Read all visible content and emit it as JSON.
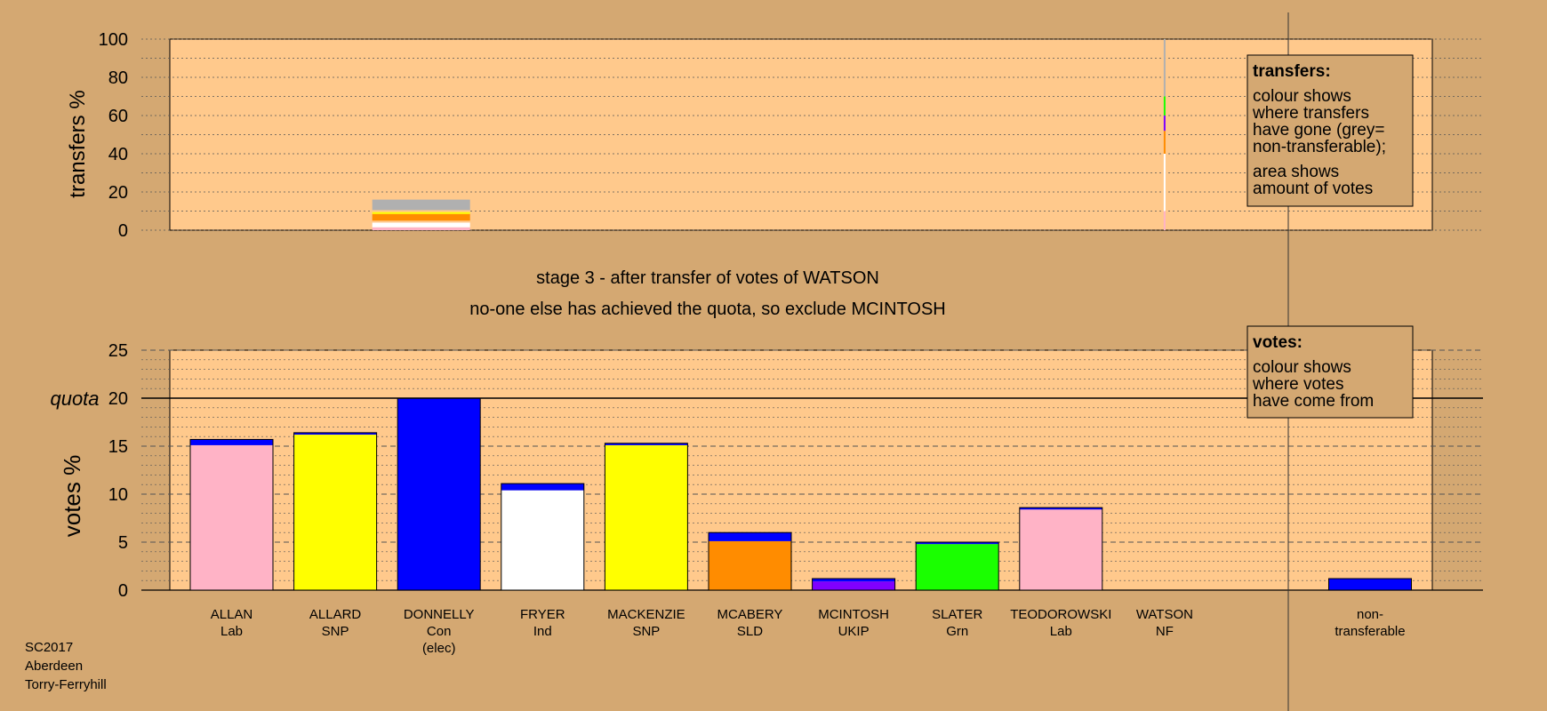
{
  "header": {
    "stage_title": "stage 3 - after transfer of votes of WATSON",
    "stage_note": "no-one else has achieved the quota, so exclude MCINTOSH"
  },
  "footer": {
    "election": "SC2017",
    "council": "Aberdeen",
    "ward": "Torry-Ferryhill"
  },
  "legend_transfers": {
    "title": "transfers:",
    "line1": "colour shows",
    "line2": "where transfers",
    "line3": "have gone (grey=",
    "line4": "non-transferable);",
    "line5": "area shows",
    "line6": "amount of votes"
  },
  "legend_votes": {
    "title": "votes:",
    "line1": "colour shows",
    "line2": "where votes",
    "line3": "have come from"
  },
  "colors": {
    "background": "#d4a872",
    "plot_bg": "#ffc98c",
    "Lab": "#ffb3c6",
    "SNP": "#ffff00",
    "Con": "#0000ff",
    "Ind": "#ffffff",
    "SLD": "#ff8c00",
    "UKIP": "#8000ff",
    "Grn": "#1aff00",
    "NF": "#b0b0b0",
    "non_transferable": "#b0b0b0"
  },
  "chart_data": [
    {
      "type": "bar",
      "stacked": true,
      "name": "transfers",
      "ylabel": "transfers %",
      "ylim": [
        0,
        100
      ],
      "yticks": [
        0,
        20,
        40,
        60,
        80,
        100
      ],
      "categories": [
        "DONNELLY",
        "WATSON"
      ],
      "bars": [
        {
          "candidate": "DONNELLY",
          "segments": [
            {
              "color": "#ffb3c6",
              "value": 1.5
            },
            {
              "color": "#ffffff",
              "value": 2.5
            },
            {
              "color": "#ffc98c",
              "value": 1.0
            },
            {
              "color": "#ff8c00",
              "value": 3.5
            },
            {
              "color": "#ffff00",
              "value": 1.0
            },
            {
              "color": "#ffc98c",
              "value": 1.0
            },
            {
              "color": "#b0b0b0",
              "value": 5.5
            }
          ]
        },
        {
          "candidate": "WATSON",
          "segments": [
            {
              "color": "#ffb3c6",
              "value": 10
            },
            {
              "color": "#ffffff",
              "value": 30
            },
            {
              "color": "#ff8c00",
              "value": 12
            },
            {
              "color": "#8000ff",
              "value": 8
            },
            {
              "color": "#1aff00",
              "value": 10
            },
            {
              "color": "#b0b0b0",
              "value": 30
            }
          ]
        }
      ]
    },
    {
      "type": "bar",
      "stacked": true,
      "name": "votes",
      "ylabel": "votes %",
      "ylim": [
        0,
        25
      ],
      "yticks": [
        0,
        5,
        10,
        15,
        20,
        25
      ],
      "quota": 20,
      "quota_label": "quota",
      "categories": [
        "ALLAN",
        "ALLARD",
        "DONNELLY",
        "FRYER",
        "MACKENZIE",
        "MCABERY",
        "MCINTOSH",
        "SLATER",
        "TEODOROWSKI",
        "WATSON",
        "non-"
      ],
      "candidates": [
        {
          "name": "ALLAN",
          "party": "Lab",
          "segments": [
            {
              "color": "#ffb3c6",
              "value": 15.1
            },
            {
              "color": "#0000ff",
              "value": 0.6
            }
          ]
        },
        {
          "name": "ALLARD",
          "party": "SNP",
          "segments": [
            {
              "color": "#ffff00",
              "value": 16.2
            },
            {
              "color": "#0000ff",
              "value": 0.2
            }
          ]
        },
        {
          "name": "DONNELLY",
          "party": "Con",
          "note": "(elec)",
          "segments": [
            {
              "color": "#0000ff",
              "value": 20.0
            }
          ]
        },
        {
          "name": "FRYER",
          "party": "Ind",
          "segments": [
            {
              "color": "#ffffff",
              "value": 10.4
            },
            {
              "color": "#0000ff",
              "value": 0.7
            }
          ]
        },
        {
          "name": "MACKENZIE",
          "party": "SNP",
          "segments": [
            {
              "color": "#ffff00",
              "value": 15.1
            },
            {
              "color": "#0000ff",
              "value": 0.2
            }
          ]
        },
        {
          "name": "MCABERY",
          "party": "SLD",
          "segments": [
            {
              "color": "#ff8c00",
              "value": 5.1
            },
            {
              "color": "#0000ff",
              "value": 0.9
            }
          ]
        },
        {
          "name": "MCINTOSH",
          "party": "UKIP",
          "segments": [
            {
              "color": "#8000ff",
              "value": 0.9
            },
            {
              "color": "#0000ff",
              "value": 0.3
            }
          ]
        },
        {
          "name": "SLATER",
          "party": "Grn",
          "segments": [
            {
              "color": "#1aff00",
              "value": 4.8
            },
            {
              "color": "#0000ff",
              "value": 0.2
            }
          ]
        },
        {
          "name": "TEODOROWSKI",
          "party": "Lab",
          "segments": [
            {
              "color": "#ffb3c6",
              "value": 8.4
            },
            {
              "color": "#0000ff",
              "value": 0.2
            }
          ]
        },
        {
          "name": "WATSON",
          "party": "NF",
          "segments": []
        },
        {
          "name": "non-",
          "party": "transferable",
          "segments": [
            {
              "color": "#0000ff",
              "value": 1.2
            }
          ]
        }
      ]
    }
  ]
}
